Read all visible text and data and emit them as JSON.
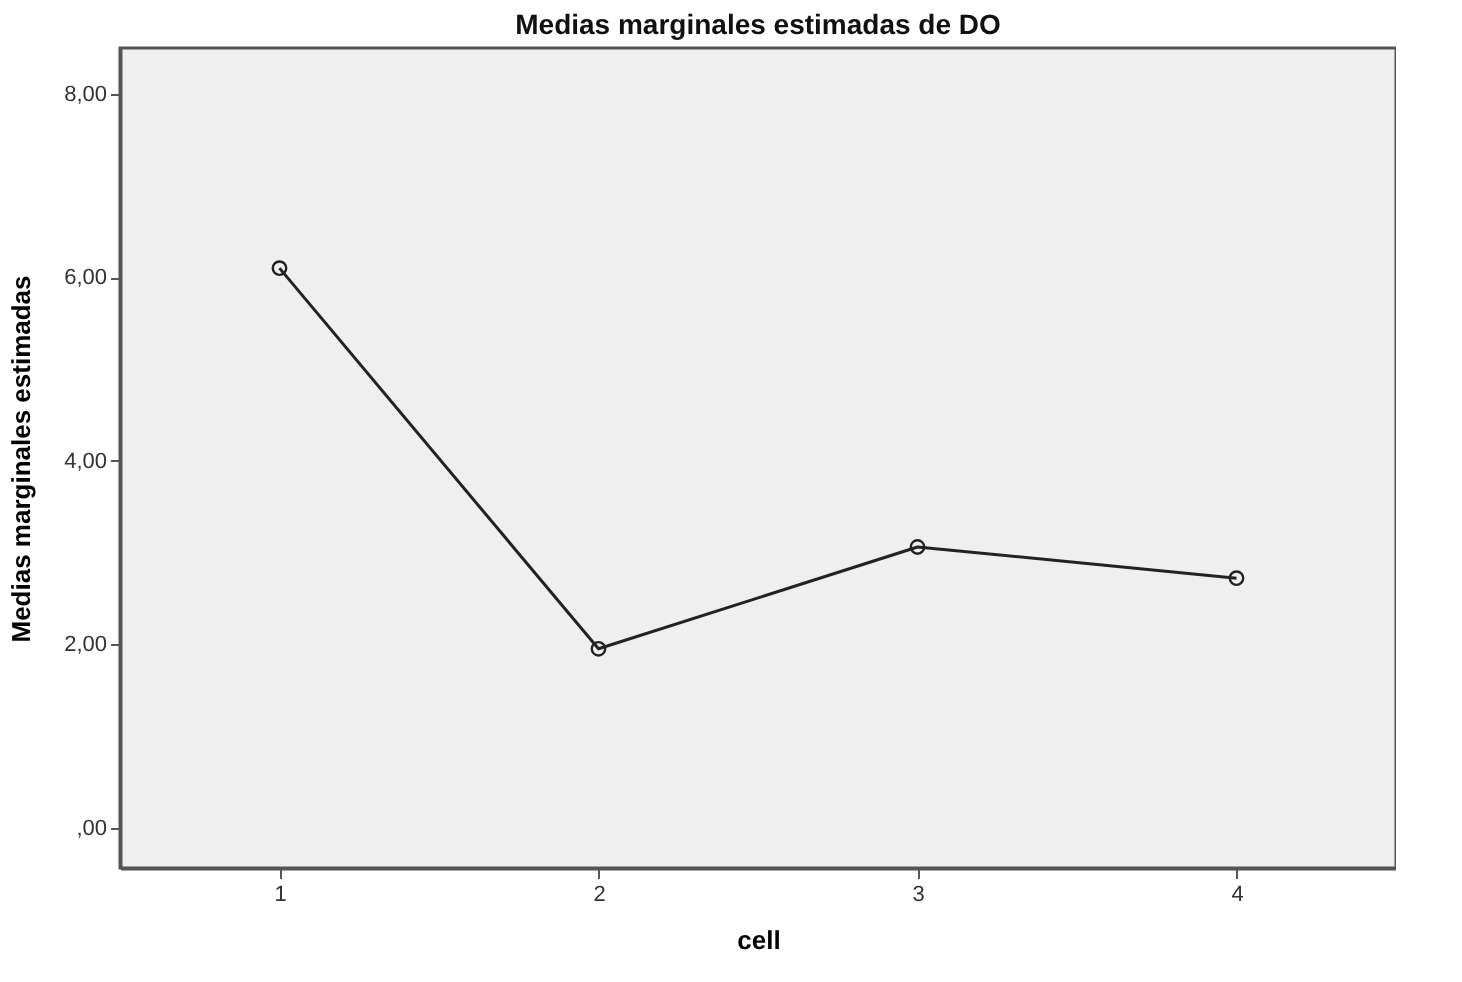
{
  "chart_data": {
    "type": "line",
    "title": "Medias marginales estimadas de DO",
    "xlabel": "cell",
    "ylabel": "Medias marginales estimadas",
    "categories": [
      "1",
      "2",
      "3",
      "4"
    ],
    "series": [
      {
        "color": "#222222",
        "values": [
          6.1,
          1.95,
          3.06,
          2.72
        ]
      }
    ],
    "ylim": [
      -0.44,
      8.5
    ],
    "yticks": [
      {
        "value": 0,
        "label": ",00"
      },
      {
        "value": 2,
        "label": "2,00"
      },
      {
        "value": 4,
        "label": "4,00"
      },
      {
        "value": 6,
        "label": "6,00"
      },
      {
        "value": 8,
        "label": "8,00"
      }
    ],
    "grid": false,
    "marker": "circle"
  }
}
